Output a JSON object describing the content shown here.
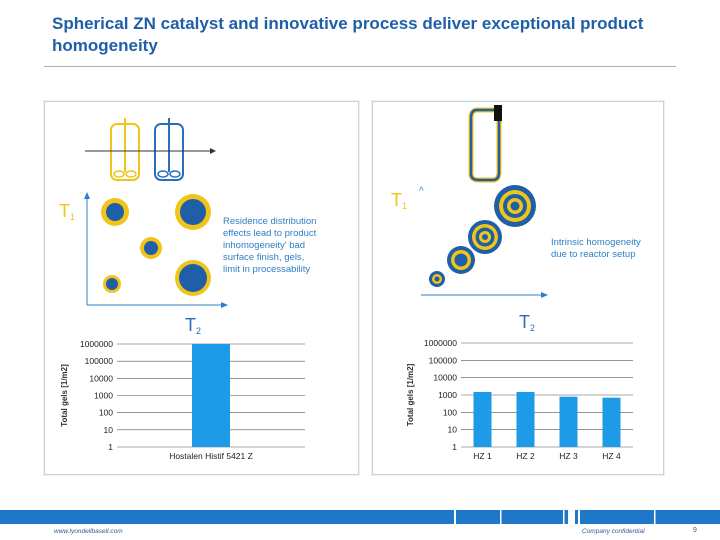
{
  "slide": {
    "title": "Spherical ZN catalyst and innovative process deliver exceptional product homogeneity",
    "footer_left": "www.lyondellbasell.com",
    "footer_right": "Company confidential",
    "page_number": "9"
  },
  "left_panel": {
    "t1_label": "T",
    "t1_sub": "1",
    "t2_label": "T",
    "t2_sub": "2",
    "annotation": [
      "Residence distribution",
      "effects lead to product",
      "inhomogeneity' bad",
      "surface finish, gels,",
      "limit in processability"
    ],
    "colors": {
      "reactor_1": "#f0c419",
      "reactor_2": "#2a6ebb",
      "dot": "#1f5fa8",
      "ring": "#f0c419",
      "text": "#2e7fc8"
    }
  },
  "right_panel": {
    "t1_label": "T",
    "t1_sub": "1",
    "t2_label": "T",
    "t2_sub": "2",
    "caret": "^",
    "annotation": [
      "Intrinsic homogeneity",
      "due to reactor setup"
    ],
    "colors": {
      "pipe": "#1f5fa8",
      "pipe_outline": "#f0c419",
      "ring_dark": "#1f5fa8",
      "ring_light": "#f0c419"
    }
  },
  "chart_data": [
    {
      "type": "bar",
      "categories": [
        "Hostalen Histif 5421 Z"
      ],
      "values": [
        1000000
      ],
      "ylabel": "Total gels [1/m2]",
      "yscale": "log",
      "ylim": [
        1,
        1000000
      ],
      "yticks": [
        "1000000",
        "100000",
        "10000",
        "1000",
        "100",
        "10",
        "1"
      ],
      "color": "#1d9be6"
    },
    {
      "type": "bar",
      "categories": [
        "HZ 1",
        "HZ 2",
        "HZ 3",
        "HZ 4"
      ],
      "values": [
        1500,
        1500,
        800,
        700
      ],
      "ylabel": "Total gels [1/m2]",
      "yscale": "log",
      "ylim": [
        1,
        1000000
      ],
      "yticks": [
        "1000000",
        "100000",
        "10000",
        "1000",
        "100",
        "10",
        "1"
      ],
      "color": "#1d9be6"
    }
  ]
}
